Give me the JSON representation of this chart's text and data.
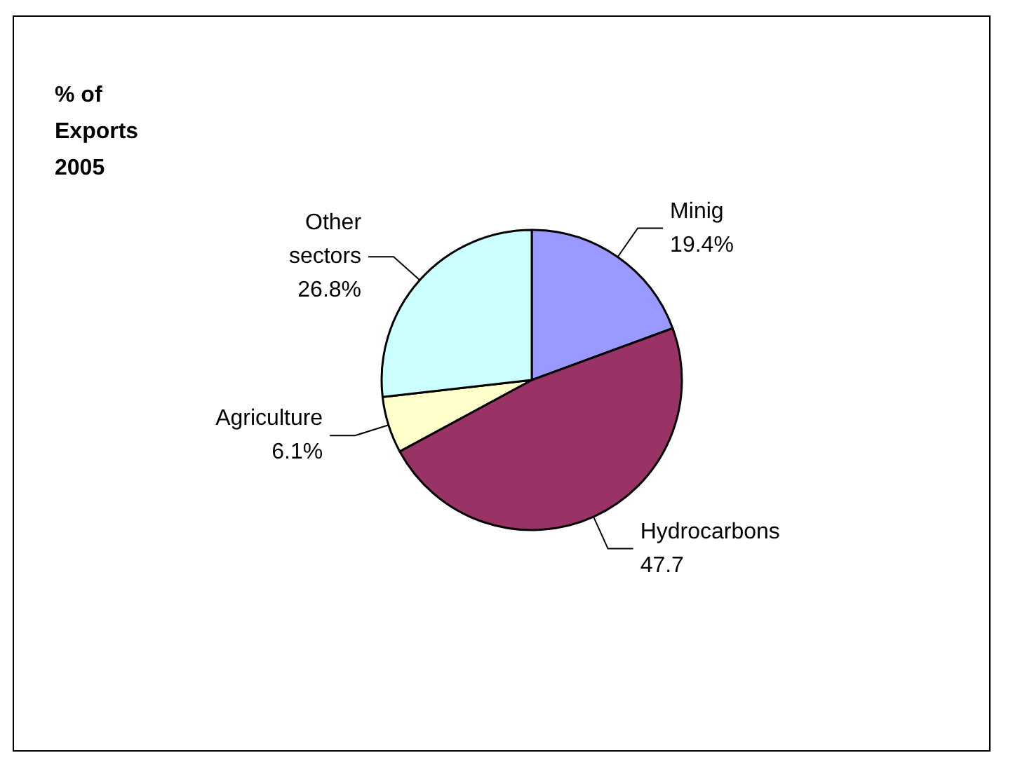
{
  "chart_data": {
    "type": "pie",
    "title": "% of Exports 2005",
    "categories": [
      "Minig",
      "Hydrocarbons",
      "Agriculture",
      "Other sectors"
    ],
    "values": [
      19.4,
      47.7,
      6.1,
      26.8
    ],
    "value_labels": [
      "19.4%",
      "47.7",
      "6.1%",
      "26.8%"
    ],
    "colors": [
      "#9999ff",
      "#993366",
      "#ffffcc",
      "#ccffff"
    ],
    "legend": false
  }
}
